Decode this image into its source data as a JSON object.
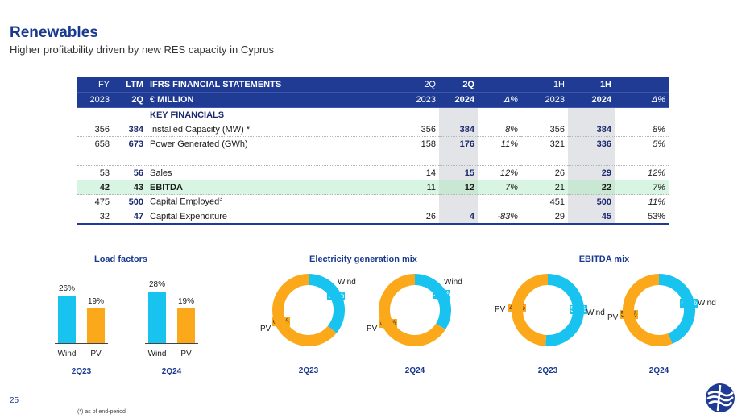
{
  "header": {
    "title": "Renewables",
    "subtitle": "Higher profitability driven by new RES capacity in Cyprus"
  },
  "table": {
    "header_row1": [
      "FY",
      "LTM",
      "IFRS FINANCIAL STATEMENTS",
      "2Q",
      "2Q",
      "",
      "1H",
      "1H",
      ""
    ],
    "header_row2": [
      "2023",
      "2Q",
      "€ MILLION",
      "2023",
      "2024",
      "Δ%",
      "2023",
      "2024",
      "Δ%"
    ],
    "section_label": "KEY FINANCIALS",
    "rows": [
      {
        "fy": "356",
        "ltm": "384",
        "label": "Installed Capacity (MW) *",
        "q23": "356",
        "q24": "384",
        "dq": "8%",
        "h23": "356",
        "h24": "384",
        "dh": "8%"
      },
      {
        "fy": "658",
        "ltm": "673",
        "label": "Power Generated (GWh)",
        "q23": "158",
        "q24": "176",
        "dq": "11%",
        "h23": "321",
        "h24": "336",
        "dh": "5%"
      },
      {
        "fy": "53",
        "ltm": "56",
        "label": "Sales",
        "q23": "14",
        "q24": "15",
        "dq": "12%",
        "h23": "26",
        "h24": "29",
        "dh": "12%"
      },
      {
        "fy": "42",
        "ltm": "43",
        "label": "EBITDA",
        "q23": "11",
        "q24": "12",
        "dq": "7%",
        "h23": "21",
        "h24": "22",
        "dh": "7%"
      },
      {
        "fy": "475",
        "ltm": "500",
        "label": "Capital Employed",
        "label_sup": "3",
        "q23": "",
        "q24": "",
        "dq": "",
        "h23": "451",
        "h24": "500",
        "dh": "11%"
      },
      {
        "fy": "32",
        "ltm": "47",
        "label": "Capital Expenditure",
        "q23": "26",
        "q24": "4",
        "dq": "-83%",
        "h23": "29",
        "h24": "45",
        "dh": "53%"
      }
    ]
  },
  "colors": {
    "wind": "#19c3f0",
    "pv": "#fba91a",
    "navy": "#1f3b94"
  },
  "chart_data": [
    {
      "type": "bar",
      "title": "Load factors",
      "groups": [
        {
          "period": "2Q23",
          "categories": [
            "Wind",
            "PV"
          ],
          "values": [
            26,
            19
          ],
          "labels": [
            "26%",
            "19%"
          ]
        },
        {
          "period": "2Q24",
          "categories": [
            "Wind",
            "PV"
          ],
          "values": [
            28,
            19
          ],
          "labels": [
            "28%",
            "19%"
          ]
        }
      ]
    },
    {
      "type": "pie",
      "title": "Electricity generation mix",
      "groups": [
        {
          "period": "2Q23",
          "categories": [
            "Wind",
            "PV"
          ],
          "values": [
            36,
            64
          ],
          "labels": [
            "36%",
            "64%"
          ]
        },
        {
          "period": "2Q24",
          "categories": [
            "Wind",
            "PV"
          ],
          "values": [
            34,
            66
          ],
          "labels": [
            "34%",
            "66%"
          ]
        }
      ]
    },
    {
      "type": "pie",
      "title": "EBITDA mix",
      "groups": [
        {
          "period": "2Q23",
          "categories": [
            "Wind",
            "PV"
          ],
          "values": [
            51,
            49
          ],
          "labels": [
            "51%",
            "49%"
          ]
        },
        {
          "period": "2Q24",
          "categories": [
            "Wind",
            "PV"
          ],
          "values": [
            44,
            56
          ],
          "labels": [
            "44%",
            "56%"
          ]
        }
      ]
    }
  ],
  "footer": {
    "page_number": "25",
    "footnote": "(*) as of end-period",
    "logo_icon": "company-logo-icon"
  }
}
